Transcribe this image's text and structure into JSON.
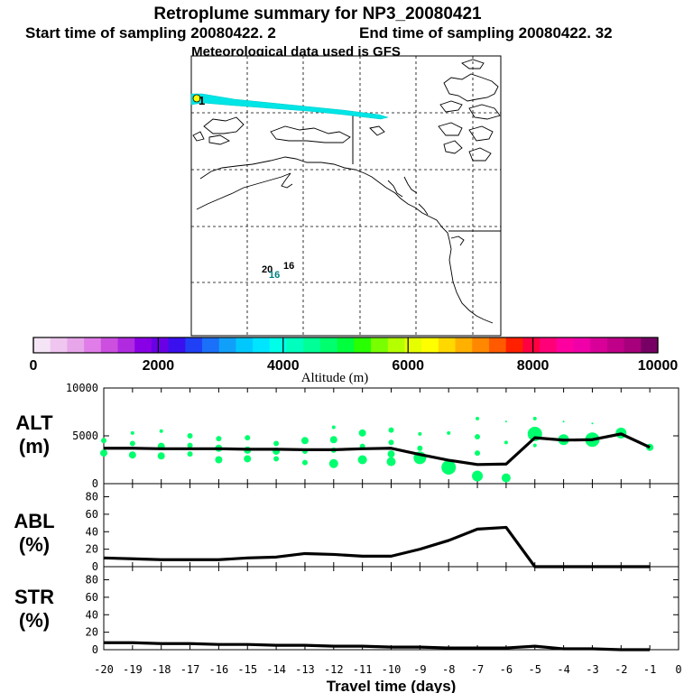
{
  "header": {
    "title": "Retroplume summary for NP3_20080421",
    "start_label": "Start time of sampling 20080422.    2",
    "end_label": "End time of sampling 20080422.    32",
    "met_label": "Meteorological data used is GFS"
  },
  "map": {
    "source_marker": "1",
    "label_a": "20",
    "label_b": "16",
    "label_c": "16",
    "plume_color": "#00e5e5"
  },
  "colorbar": {
    "axis_label": "Altitude (m)",
    "tick_labels": [
      "0",
      "2000",
      "4000",
      "6000",
      "8000",
      "10000"
    ],
    "min": 0,
    "max": 10000,
    "colors": [
      "#f5e4f6",
      "#efc6f0",
      "#e8a6ea",
      "#e07de8",
      "#cc4fe0",
      "#b02ae0",
      "#8a00e6",
      "#6a00e6",
      "#3a10ee",
      "#2040f6",
      "#1a70f8",
      "#10a0fa",
      "#00c8fc",
      "#00e5ff",
      "#00ffe8",
      "#00ffbe",
      "#00ff96",
      "#00ff6e",
      "#00ff3c",
      "#28ff00",
      "#78ff00",
      "#b4ff00",
      "#e6ff00",
      "#ffff00",
      "#ffd800",
      "#ffb000",
      "#ff8800",
      "#ff5a00",
      "#ff2000",
      "#ff0040",
      "#ff0078",
      "#ff00a0",
      "#f000a8",
      "#d80098",
      "#c00088",
      "#a8007c",
      "#780064"
    ]
  },
  "chart_data": [
    {
      "type": "line",
      "title": "ALT",
      "ylabel": "(m)",
      "ylim": [
        0,
        10000
      ],
      "yticks": [
        0,
        5000,
        10000
      ],
      "x": [
        -20,
        -19,
        -18,
        -17,
        -16,
        -15,
        -14,
        -13,
        -12,
        -11,
        -10,
        -9,
        -8,
        -7,
        -6,
        -5,
        -4,
        -3,
        -2,
        -1
      ],
      "values": [
        3700,
        3700,
        3650,
        3650,
        3650,
        3600,
        3600,
        3550,
        3550,
        3650,
        3700,
        3050,
        2450,
        2000,
        2050,
        4800,
        4550,
        4600,
        5200,
        3800
      ],
      "color": "#000000",
      "scatter": {
        "color": "#00ff6e",
        "points": [
          {
            "x": -20,
            "y": 4500,
            "s": 3
          },
          {
            "x": -20,
            "y": 3200,
            "s": 4
          },
          {
            "x": -19,
            "y": 5300,
            "s": 2
          },
          {
            "x": -19,
            "y": 4200,
            "s": 3
          },
          {
            "x": -19,
            "y": 3000,
            "s": 4
          },
          {
            "x": -18,
            "y": 5500,
            "s": 2
          },
          {
            "x": -18,
            "y": 3900,
            "s": 4
          },
          {
            "x": -18,
            "y": 2900,
            "s": 4
          },
          {
            "x": -17,
            "y": 5000,
            "s": 3
          },
          {
            "x": -17,
            "y": 4000,
            "s": 3
          },
          {
            "x": -17,
            "y": 3100,
            "s": 3
          },
          {
            "x": -16,
            "y": 4700,
            "s": 3
          },
          {
            "x": -16,
            "y": 3700,
            "s": 4
          },
          {
            "x": -16,
            "y": 2500,
            "s": 4
          },
          {
            "x": -15,
            "y": 4800,
            "s": 3
          },
          {
            "x": -15,
            "y": 3500,
            "s": 4
          },
          {
            "x": -15,
            "y": 2600,
            "s": 4
          },
          {
            "x": -14,
            "y": 4200,
            "s": 3
          },
          {
            "x": -14,
            "y": 3400,
            "s": 4
          },
          {
            "x": -14,
            "y": 2600,
            "s": 3
          },
          {
            "x": -13,
            "y": 4500,
            "s": 4
          },
          {
            "x": -13,
            "y": 3400,
            "s": 3
          },
          {
            "x": -13,
            "y": 2200,
            "s": 3
          },
          {
            "x": -12,
            "y": 5900,
            "s": 2
          },
          {
            "x": -12,
            "y": 4600,
            "s": 4
          },
          {
            "x": -12,
            "y": 3500,
            "s": 3
          },
          {
            "x": -12,
            "y": 2100,
            "s": 5
          },
          {
            "x": -11,
            "y": 5300,
            "s": 4
          },
          {
            "x": -11,
            "y": 3900,
            "s": 3
          },
          {
            "x": -11,
            "y": 2500,
            "s": 5
          },
          {
            "x": -10,
            "y": 5600,
            "s": 3
          },
          {
            "x": -10,
            "y": 4300,
            "s": 3
          },
          {
            "x": -10,
            "y": 3100,
            "s": 4
          },
          {
            "x": -10,
            "y": 2300,
            "s": 5
          },
          {
            "x": -9,
            "y": 5200,
            "s": 2
          },
          {
            "x": -9,
            "y": 3700,
            "s": 3
          },
          {
            "x": -9,
            "y": 2700,
            "s": 7
          },
          {
            "x": -8,
            "y": 5300,
            "s": 2
          },
          {
            "x": -8,
            "y": 1700,
            "s": 8
          },
          {
            "x": -7,
            "y": 6800,
            "s": 2
          },
          {
            "x": -7,
            "y": 4900,
            "s": 3
          },
          {
            "x": -7,
            "y": 3200,
            "s": 3
          },
          {
            "x": -7,
            "y": 800,
            "s": 6
          },
          {
            "x": -6,
            "y": 6500,
            "s": 1
          },
          {
            "x": -6,
            "y": 4300,
            "s": 2
          },
          {
            "x": -6,
            "y": 600,
            "s": 5
          },
          {
            "x": -5,
            "y": 6800,
            "s": 2
          },
          {
            "x": -5,
            "y": 5200,
            "s": 8
          },
          {
            "x": -5,
            "y": 4000,
            "s": 2
          },
          {
            "x": -4,
            "y": 6500,
            "s": 1
          },
          {
            "x": -4,
            "y": 4600,
            "s": 6
          },
          {
            "x": -3,
            "y": 6300,
            "s": 1
          },
          {
            "x": -3,
            "y": 4600,
            "s": 8
          },
          {
            "x": -2,
            "y": 5300,
            "s": 6
          },
          {
            "x": -1,
            "y": 3800,
            "s": 4
          }
        ]
      }
    },
    {
      "type": "line",
      "title": "ABL",
      "ylabel": "(%)",
      "ylim": [
        0,
        95
      ],
      "yticks": [
        0,
        20,
        40,
        60,
        80
      ],
      "x": [
        -20,
        -19,
        -18,
        -17,
        -16,
        -15,
        -14,
        -13,
        -12,
        -11,
        -10,
        -9,
        -8,
        -7,
        -6,
        -5,
        -4,
        -3,
        -2,
        -1
      ],
      "values": [
        10,
        9,
        8,
        8,
        8,
        10,
        11,
        15,
        14,
        12,
        12,
        20,
        30,
        43,
        45,
        0,
        0,
        0,
        0,
        0
      ],
      "color": "#000000"
    },
    {
      "type": "line",
      "title": "STR",
      "ylabel": "(%)",
      "ylim": [
        0,
        95
      ],
      "yticks": [
        0,
        20,
        40,
        60,
        80
      ],
      "x": [
        -20,
        -19,
        -18,
        -17,
        -16,
        -15,
        -14,
        -13,
        -12,
        -11,
        -10,
        -9,
        -8,
        -7,
        -6,
        -5,
        -4,
        -3,
        -2,
        -1
      ],
      "values": [
        8,
        8,
        7,
        7,
        6,
        6,
        5,
        5,
        4,
        4,
        3,
        3,
        2,
        2,
        2,
        4,
        1,
        1,
        0,
        0
      ],
      "color": "#000000",
      "xlabel": "Travel time (days)",
      "xticks": [
        -20,
        -19,
        -18,
        -17,
        -16,
        -15,
        -14,
        -13,
        -12,
        -11,
        -10,
        -9,
        -8,
        -7,
        -6,
        -5,
        -4,
        -3,
        -2,
        -1,
        0
      ],
      "xtick_labels": [
        "-20",
        "-19",
        "-18",
        "-17",
        "-16",
        "-15",
        "-14",
        "-13",
        "-12",
        "-11",
        "-10",
        "-9",
        "-8",
        "-7",
        "-6",
        "-5",
        "-4",
        "-3",
        "-2",
        "-1",
        "0"
      ],
      "xlim": [
        -20,
        0
      ]
    }
  ]
}
